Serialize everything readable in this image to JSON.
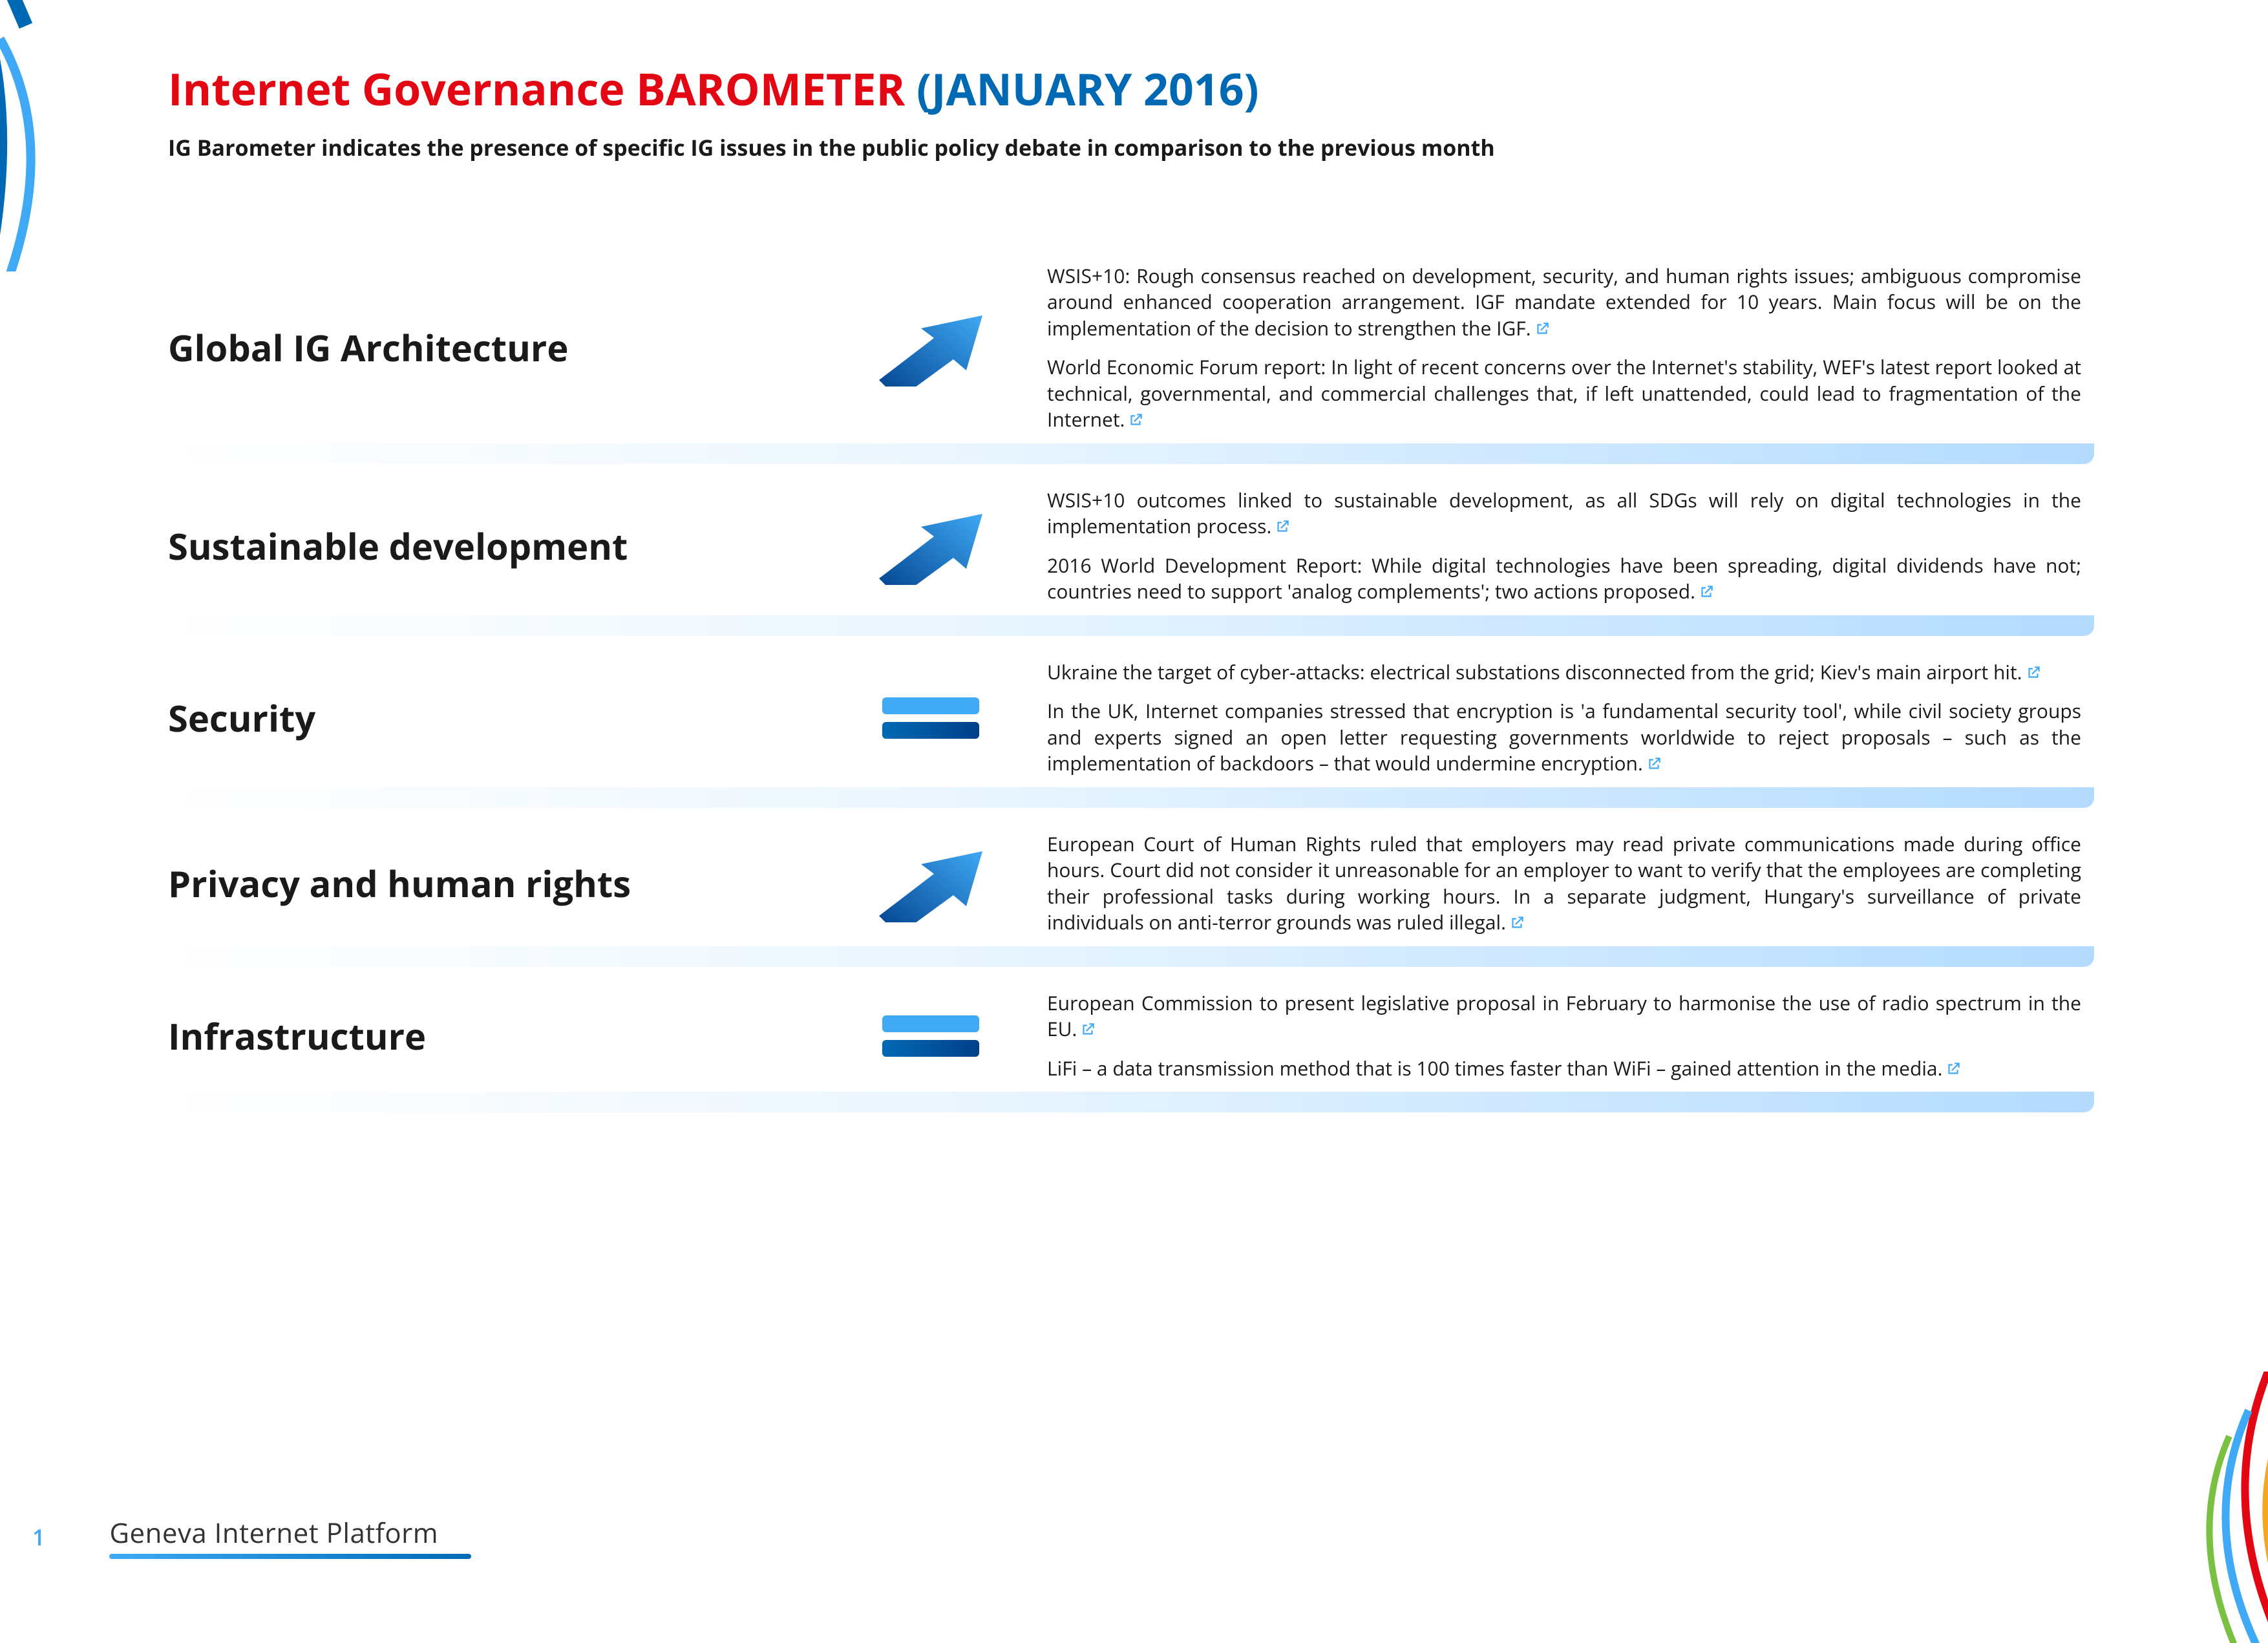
{
  "title": {
    "part1": "Internet Governance BAROMETER ",
    "part2": "(JANUARY 2016)",
    "color_part1": "#e30613",
    "color_part2": "#0069b4",
    "fontsize": 68
  },
  "subtitle": "IG Barometer indicates the presence of specific IG issues in the public policy debate in comparison to the previous month",
  "link_icon_color": "#3fa9f5",
  "arrow_gradient": {
    "from": "#3fa9f5",
    "to": "#003f8a"
  },
  "rows": [
    {
      "category": "Global IG Architecture",
      "trend": "up",
      "paragraphs": [
        "WSIS+10: Rough consensus reached on development, security, and human rights issues; ambiguous compromise around enhanced cooperation arrangement. IGF mandate extended for 10 years. Main focus will be on the implementation of the decision to strengthen the IGF.",
        "World Economic Forum report: In light of recent concerns over the Internet's stability, WEF's latest report looked at technical, governmental, and commercial challenges that, if left unattended, could lead to fragmentation of the Internet."
      ],
      "link_after": [
        true,
        true
      ]
    },
    {
      "category": "Sustainable development",
      "trend": "up",
      "paragraphs": [
        "WSIS+10 outcomes linked to sustainable development, as all SDGs will rely on digital technologies in the implementation process.",
        "2016 World Development Report: While digital technologies have been spreading, digital dividends have not; countries need to support 'analog complements'; two actions proposed."
      ],
      "link_after": [
        true,
        true
      ]
    },
    {
      "category": "Security",
      "trend": "same",
      "paragraphs": [
        "Ukraine the target of cyber-attacks: electrical substations disconnected from the grid; Kiev's main airport hit.",
        "In the UK, Internet companies stressed that encryption is 'a fundamental security tool', while civil society groups and experts signed an open letter requesting governments worldwide to reject proposals – such as the implementation of backdoors – that would undermine encryption."
      ],
      "link_after": [
        true,
        true
      ]
    },
    {
      "category": "Privacy and human rights",
      "trend": "up",
      "paragraphs": [
        "European Court of Human Rights ruled that employers may read private communications made during office hours. Court did not consider it unreasonable for an employer to want to verify that the employees are completing their professional tasks during working hours. In a separate judgment, Hungary's surveillance of private individuals on anti-terror grounds was ruled illegal."
      ],
      "link_after": [
        true
      ]
    },
    {
      "category": "Infrastructure",
      "trend": "same",
      "paragraphs": [
        "European Commission to present legislative proposal in February to harmonise the use of radio spectrum in the EU.",
        "LiFi – a data transmission method that is 100 times faster than WiFi – gained attention in the media."
      ],
      "link_after": [
        true,
        true
      ]
    }
  ],
  "footer": {
    "page_number": "1",
    "brand": "Geneva Internet Platform"
  },
  "deco_colors": {
    "blue_dark": "#0069b4",
    "blue_light": "#3fa9f5",
    "red": "#e30613",
    "orange": "#f5a623",
    "green": "#7ac143"
  }
}
